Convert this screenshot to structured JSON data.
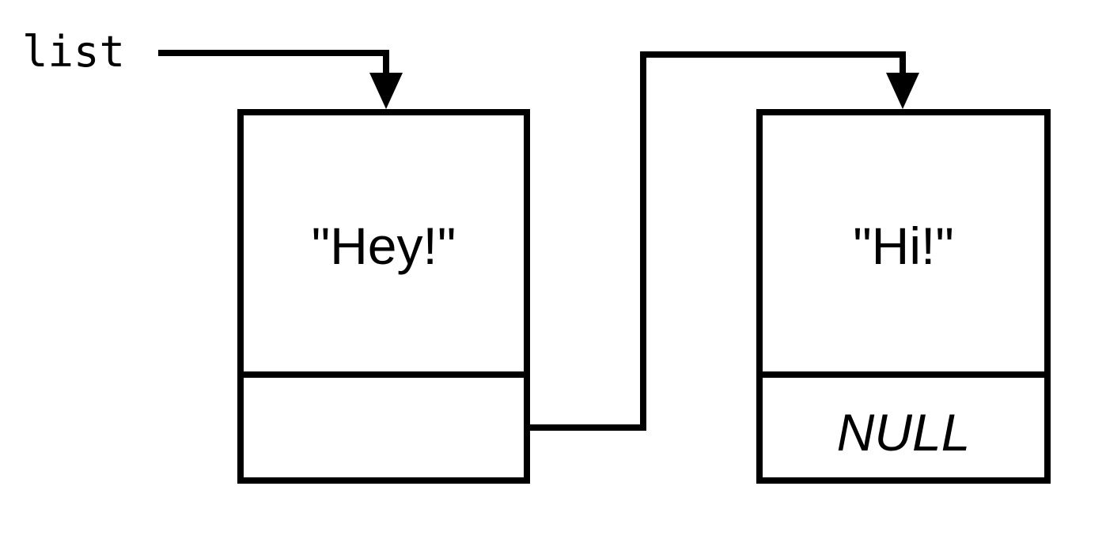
{
  "pointer": {
    "label": "list"
  },
  "nodes": [
    {
      "value": "\"Hey!\"",
      "next": ""
    },
    {
      "value": "\"Hi!\"",
      "next": "NULL"
    }
  ],
  "colors": {
    "stroke": "#000000",
    "background": "#ffffff"
  }
}
